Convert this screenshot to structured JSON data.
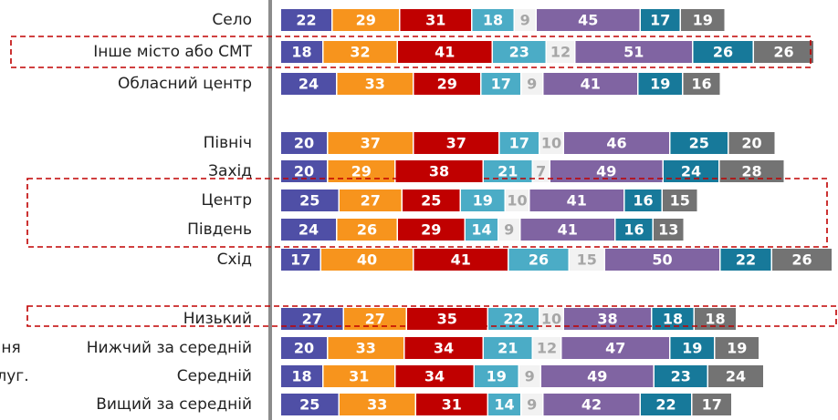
{
  "chart_data": {
    "type": "stacked_bar_horizontal",
    "categories": [
      "Село",
      "Інше місто або СМТ",
      "Обласний центр",
      "Північ",
      "Захід",
      "Центр",
      "Південь",
      "Схід",
      "Низький",
      "Нижчий за середній",
      "Середній",
      "Вищий за середній"
    ],
    "series": [
      {
        "color": "#4f4fa6",
        "values": [
          22,
          18,
          24,
          20,
          20,
          25,
          24,
          17,
          27,
          20,
          18,
          25
        ]
      },
      {
        "color": "#f7941d",
        "values": [
          29,
          32,
          33,
          37,
          29,
          27,
          26,
          40,
          27,
          33,
          31,
          33
        ]
      },
      {
        "color": "#c00000",
        "values": [
          31,
          41,
          29,
          37,
          38,
          25,
          29,
          41,
          35,
          34,
          34,
          31
        ]
      },
      {
        "color": "#4bacc6",
        "values": [
          18,
          23,
          17,
          17,
          21,
          19,
          14,
          26,
          22,
          21,
          19,
          14
        ]
      },
      {
        "color": "#f2f2f2",
        "values": [
          9,
          12,
          9,
          10,
          7,
          10,
          9,
          15,
          10,
          12,
          9,
          9
        ]
      },
      {
        "color": "#8064a2",
        "values": [
          45,
          51,
          41,
          46,
          49,
          41,
          41,
          50,
          38,
          47,
          49,
          42
        ]
      },
      {
        "color": "#17799a",
        "values": [
          17,
          26,
          19,
          25,
          24,
          16,
          16,
          22,
          18,
          19,
          23,
          22
        ]
      },
      {
        "color": "#737373",
        "values": [
          19,
          26,
          16,
          20,
          28,
          15,
          13,
          26,
          18,
          19,
          24,
          17
        ]
      }
    ],
    "annotations": [
      "ня",
      "луг."
    ]
  }
}
